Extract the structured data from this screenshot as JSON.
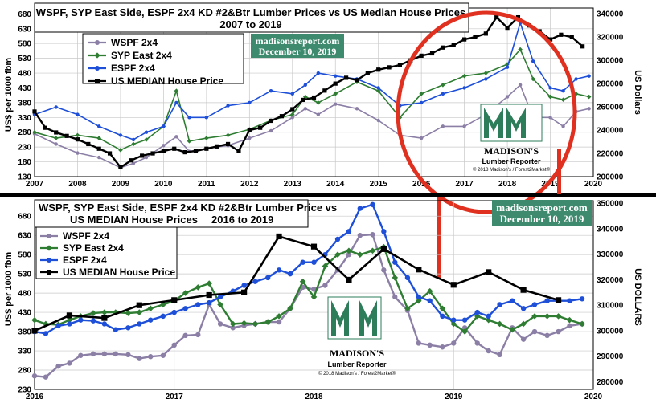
{
  "chart_data": [
    {
      "type": "line",
      "title_line1": "WSPF, SYP East Side, ESPF 2x4 KD #2&Btr Lumber Prices vs US Median House Prices",
      "title_line2": "2007 to 2019",
      "ylabel": "US$ per 1000 fbm",
      "y2label": "US Dollars",
      "ylim": [
        130,
        700
      ],
      "y2lim": [
        200000,
        345000
      ],
      "xlim": [
        2007,
        2020
      ],
      "yticks": [
        "680",
        "630",
        "580",
        "530",
        "480",
        "430",
        "380",
        "330",
        "280",
        "230",
        "180",
        "130"
      ],
      "y2ticks": [
        "340000",
        "320000",
        "300000",
        "280000",
        "260000",
        "240000",
        "220000",
        "200000"
      ],
      "xticks": [
        "2007",
        "2008",
        "2009",
        "2010",
        "2011",
        "2012",
        "2013",
        "2014",
        "2015",
        "2016",
        "2017",
        "2018",
        "2019",
        "2020"
      ],
      "badge": [
        "madisonsreport.com",
        "December 10, 2019"
      ],
      "logo": {
        "line1": "MADISON'S",
        "line2": "Lumber Reporter",
        "line3": "© 2018 Madison's / Forest2Market®"
      },
      "legend": [
        "WSPF 2x4",
        "SYP East 2x4",
        "ESPF 2x4",
        "US MEDIAN House Price"
      ],
      "series": [
        {
          "name": "WSPF 2x4",
          "color": "#8c7fa6",
          "marker": "circle",
          "x": [
            2007.0,
            2007.5,
            2008.0,
            2008.5,
            2009.0,
            2009.3,
            2009.6,
            2010.0,
            2010.3,
            2010.6,
            2011.0,
            2011.5,
            2012.0,
            2012.5,
            2013.0,
            2013.3,
            2013.6,
            2014.0,
            2014.5,
            2015.0,
            2015.5,
            2016.0,
            2016.5,
            2017.0,
            2017.5,
            2018.0,
            2018.3,
            2018.6,
            2019.0,
            2019.3,
            2019.6,
            2019.9
          ],
          "y": [
            275,
            240,
            210,
            195,
            160,
            175,
            195,
            235,
            265,
            215,
            225,
            235,
            260,
            285,
            330,
            360,
            340,
            375,
            360,
            320,
            270,
            260,
            300,
            300,
            340,
            400,
            440,
            330,
            330,
            300,
            350,
            360
          ]
        },
        {
          "name": "SYP East 2x4",
          "color": "#2e7d32",
          "marker": "diamond",
          "x": [
            2007.0,
            2007.5,
            2008.0,
            2008.5,
            2009.0,
            2009.3,
            2009.6,
            2010.0,
            2010.3,
            2010.6,
            2011.0,
            2011.5,
            2012.0,
            2012.5,
            2013.0,
            2013.3,
            2013.6,
            2014.0,
            2014.5,
            2015.0,
            2015.5,
            2016.0,
            2016.5,
            2017.0,
            2017.5,
            2018.0,
            2018.3,
            2018.6,
            2019.0,
            2019.3,
            2019.6,
            2019.9
          ],
          "y": [
            280,
            260,
            270,
            260,
            220,
            240,
            255,
            300,
            420,
            250,
            260,
            270,
            290,
            320,
            340,
            400,
            380,
            410,
            450,
            420,
            330,
            410,
            440,
            470,
            480,
            510,
            560,
            460,
            400,
            390,
            410,
            400
          ]
        },
        {
          "name": "ESPF 2x4",
          "color": "#1e4fd8",
          "marker": "circle",
          "x": [
            2007.0,
            2007.5,
            2008.0,
            2008.5,
            2009.0,
            2009.3,
            2009.6,
            2010.0,
            2010.3,
            2010.6,
            2011.0,
            2011.5,
            2012.0,
            2012.5,
            2013.0,
            2013.3,
            2013.6,
            2014.0,
            2014.5,
            2015.0,
            2015.5,
            2016.0,
            2016.5,
            2017.0,
            2017.5,
            2018.0,
            2018.3,
            2018.6,
            2019.0,
            2019.3,
            2019.6,
            2019.9
          ],
          "y": [
            340,
            365,
            340,
            300,
            270,
            255,
            280,
            300,
            380,
            330,
            330,
            370,
            380,
            420,
            410,
            440,
            480,
            470,
            460,
            430,
            370,
            380,
            410,
            430,
            460,
            500,
            650,
            520,
            430,
            420,
            460,
            470
          ]
        },
        {
          "name": "US MEDIAN House Price",
          "color": "#000000",
          "marker": "square",
          "x": [
            2007.0,
            2007.25,
            2007.5,
            2007.75,
            2008.0,
            2008.25,
            2008.5,
            2008.75,
            2009.0,
            2009.25,
            2009.5,
            2009.75,
            2010.0,
            2010.25,
            2010.5,
            2010.75,
            2011.0,
            2011.25,
            2011.5,
            2011.75,
            2012.0,
            2012.25,
            2012.5,
            2012.75,
            2013.0,
            2013.25,
            2013.5,
            2013.75,
            2014.0,
            2014.25,
            2014.5,
            2014.75,
            2015.0,
            2015.25,
            2015.5,
            2015.75,
            2016.0,
            2016.25,
            2016.5,
            2016.75,
            2017.0,
            2017.25,
            2017.5,
            2017.75,
            2018.0,
            2018.25,
            2018.5,
            2018.75,
            2019.0,
            2019.25,
            2019.5,
            2019.75
          ],
          "y": [
            256000,
            242000,
            238000,
            235000,
            232000,
            228000,
            224000,
            220000,
            208000,
            214000,
            218000,
            220000,
            222000,
            224000,
            221000,
            222000,
            224000,
            226000,
            228000,
            222000,
            240000,
            242000,
            248000,
            252000,
            258000,
            266000,
            268000,
            274000,
            280000,
            285000,
            283000,
            289000,
            292000,
            294000,
            296000,
            300000,
            304000,
            306000,
            311000,
            313000,
            318000,
            320000,
            323000,
            337000,
            328000,
            337000,
            330000,
            325000,
            318000,
            322000,
            320000,
            312000
          ]
        }
      ]
    },
    {
      "type": "line",
      "title_line1": "WSPF, SYP East Side, ESPF 2x4 KD #2&Btr Lumber Price vs",
      "title_line2a": "US MEDIAN House Prices",
      "title_line2b": "2016 to 2019",
      "ylabel": "US$ per 1000 fbm",
      "y2label": "US DOLLARS",
      "ylim": [
        230,
        720
      ],
      "y2lim": [
        277000,
        351000
      ],
      "xlim": [
        2016,
        2020
      ],
      "yticks": [
        "680",
        "630",
        "580",
        "530",
        "480",
        "430",
        "380",
        "330",
        "280",
        "230"
      ],
      "y2ticks": [
        "350000",
        "340000",
        "330000",
        "320000",
        "310000",
        "300000",
        "290000",
        "280000"
      ],
      "xticks": [
        "2016",
        "2017",
        "2018",
        "2019",
        "2020"
      ],
      "badge": [
        "madisonsreport.com",
        "December 10, 2019"
      ],
      "logo": {
        "line1": "MADISON'S",
        "line2": "Lumber Reporter",
        "line3": "© 2018 Madison's / Forest2Market®"
      },
      "legend": [
        "WSPF 2x4",
        "SYP East 2x4",
        "ESPF 2x4",
        "US MEDIAN House Price"
      ],
      "series": [
        {
          "name": "WSPF 2x4",
          "color": "#8c7fa6",
          "marker": "circle",
          "x": [
            2016.0,
            2016.08,
            2016.17,
            2016.25,
            2016.33,
            2016.42,
            2016.5,
            2016.58,
            2016.67,
            2016.75,
            2016.83,
            2016.92,
            2017.0,
            2017.08,
            2017.17,
            2017.25,
            2017.33,
            2017.42,
            2017.5,
            2017.58,
            2017.67,
            2017.75,
            2017.83,
            2017.92,
            2018.0,
            2018.08,
            2018.17,
            2018.25,
            2018.33,
            2018.42,
            2018.5,
            2018.58,
            2018.67,
            2018.75,
            2018.83,
            2018.92,
            2019.0,
            2019.08,
            2019.17,
            2019.25,
            2019.33,
            2019.42,
            2019.5,
            2019.58,
            2019.67,
            2019.75,
            2019.83,
            2019.92
          ],
          "y": [
            265,
            262,
            290,
            298,
            318,
            322,
            322,
            322,
            320,
            310,
            315,
            318,
            345,
            370,
            372,
            450,
            400,
            390,
            396,
            400,
            405,
            405,
            440,
            495,
            490,
            500,
            540,
            580,
            630,
            632,
            540,
            470,
            435,
            350,
            345,
            340,
            350,
            390,
            350,
            330,
            320,
            390,
            360,
            380,
            370,
            380,
            395,
            400
          ]
        },
        {
          "name": "SYP East 2x4",
          "color": "#2e7d32",
          "marker": "diamond",
          "x": [
            2016.0,
            2016.08,
            2016.17,
            2016.25,
            2016.33,
            2016.42,
            2016.5,
            2016.58,
            2016.67,
            2016.75,
            2016.83,
            2016.92,
            2017.0,
            2017.08,
            2017.17,
            2017.25,
            2017.33,
            2017.42,
            2017.5,
            2017.58,
            2017.67,
            2017.75,
            2017.83,
            2017.92,
            2018.0,
            2018.08,
            2018.17,
            2018.25,
            2018.33,
            2018.42,
            2018.5,
            2018.58,
            2018.67,
            2018.75,
            2018.83,
            2018.92,
            2019.0,
            2019.08,
            2019.17,
            2019.25,
            2019.33,
            2019.42,
            2019.5,
            2019.58,
            2019.67,
            2019.75,
            2019.83,
            2019.92
          ],
          "y": [
            410,
            400,
            398,
            410,
            420,
            428,
            430,
            430,
            428,
            430,
            440,
            450,
            460,
            480,
            495,
            505,
            450,
            400,
            402,
            400,
            405,
            420,
            440,
            510,
            470,
            550,
            580,
            590,
            580,
            590,
            600,
            520,
            440,
            460,
            485,
            440,
            400,
            380,
            420,
            410,
            400,
            385,
            400,
            420,
            420,
            420,
            410,
            400
          ]
        },
        {
          "name": "ESPF 2x4",
          "color": "#1e4fd8",
          "marker": "circle",
          "x": [
            2016.0,
            2016.08,
            2016.17,
            2016.25,
            2016.33,
            2016.42,
            2016.5,
            2016.58,
            2016.67,
            2016.75,
            2016.83,
            2016.92,
            2017.0,
            2017.08,
            2017.17,
            2017.25,
            2017.33,
            2017.42,
            2017.5,
            2017.58,
            2017.67,
            2017.75,
            2017.83,
            2017.92,
            2018.0,
            2018.08,
            2018.17,
            2018.25,
            2018.33,
            2018.42,
            2018.5,
            2018.58,
            2018.67,
            2018.75,
            2018.83,
            2018.92,
            2019.0,
            2019.08,
            2019.17,
            2019.25,
            2019.33,
            2019.42,
            2019.5,
            2019.58,
            2019.67,
            2019.75,
            2019.83,
            2019.92
          ],
          "y": [
            380,
            375,
            395,
            400,
            410,
            408,
            400,
            385,
            390,
            400,
            410,
            420,
            430,
            440,
            450,
            455,
            470,
            485,
            500,
            510,
            520,
            540,
            530,
            560,
            560,
            580,
            620,
            640,
            700,
            710,
            640,
            560,
            520,
            470,
            460,
            420,
            410,
            410,
            430,
            420,
            450,
            460,
            440,
            450,
            460,
            460,
            460,
            465
          ]
        },
        {
          "name": "US MEDIAN House Price",
          "color": "#000000",
          "marker": "square",
          "x": [
            2016.0,
            2016.25,
            2016.5,
            2016.75,
            2017.0,
            2017.25,
            2017.5,
            2017.75,
            2018.0,
            2018.25,
            2018.5,
            2018.75,
            2019.0,
            2019.25,
            2019.5,
            2019.75
          ],
          "y": [
            300000,
            306000,
            305000,
            310000,
            312000,
            314000,
            315000,
            337000,
            333000,
            320000,
            332000,
            324000,
            318000,
            323000,
            316000,
            312000
          ]
        }
      ]
    }
  ]
}
